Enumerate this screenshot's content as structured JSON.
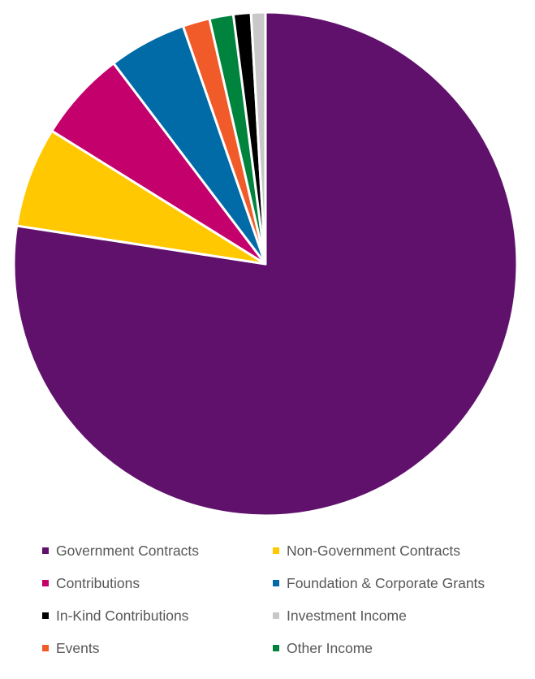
{
  "chart_data": {
    "type": "pie",
    "title": "",
    "slices": [
      {
        "label": "Government Contracts",
        "value": 75.8,
        "color": "#5f116b"
      },
      {
        "label": "Non-Government Contracts",
        "value": 6.3,
        "color": "#ffc800"
      },
      {
        "label": "Contributions",
        "value": 5.7,
        "color": "#c3006b"
      },
      {
        "label": "Foundation & Corporate Grants",
        "value": 4.9,
        "color": "#006ba6"
      },
      {
        "label": "Events",
        "value": 1.7,
        "color": "#f15a29"
      },
      {
        "label": "Other Income",
        "value": 1.5,
        "color": "#00843d"
      },
      {
        "label": "In-Kind Contributions",
        "value": 1.1,
        "color": "#000000"
      },
      {
        "label": "Investment Income",
        "value": 0.9,
        "color": "#c8c8c8"
      }
    ],
    "legend_position": "bottom"
  },
  "legend": {
    "items": [
      {
        "label": "Government Contracts",
        "color": "#5f116b"
      },
      {
        "label": "Non-Government Contracts",
        "color": "#ffc800"
      },
      {
        "label": "Contributions",
        "color": "#c3006b"
      },
      {
        "label": "Foundation & Corporate Grants",
        "color": "#006ba6"
      },
      {
        "label": "In-Kind Contributions",
        "color": "#000000"
      },
      {
        "label": "Investment Income",
        "color": "#c8c8c8"
      },
      {
        "label": "Events",
        "color": "#f15a29"
      },
      {
        "label": "Other Income",
        "color": "#00843d"
      }
    ]
  }
}
